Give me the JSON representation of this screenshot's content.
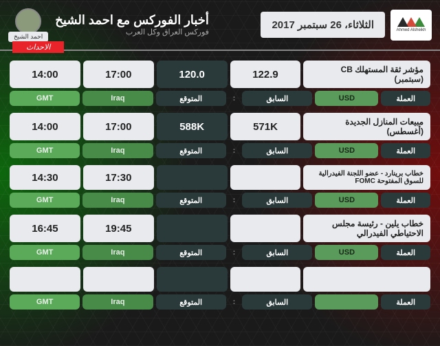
{
  "header": {
    "date": "الثلاثاء، 26 سبتمبر 2017",
    "title": "أخبار الفوركس مع احمد الشيخ",
    "subtitle": "فوركس العراق وكل العرب",
    "author": "احمد الشيخ",
    "logo_label": "Ahmed Alsheikh",
    "events_tag": "الاحداث"
  },
  "labels": {
    "currency": "العملة",
    "usd": "USD",
    "previous": "السابق",
    "expected": "المتوقع",
    "iraq": "Iraq",
    "gmt": "GMT"
  },
  "colors": {
    "tri1": "#3a8a3a",
    "tri2": "#d44a3a",
    "tri3": "#2a2a2a"
  },
  "events": [
    {
      "name": "مؤشر ثقة المستهلك CB (سبتمبر)",
      "previous": "122.9",
      "expected": "120.0",
      "time_iraq": "17:00",
      "time_gmt": "14:00",
      "has_usd": true
    },
    {
      "name": "مبيعات المنازل الجديدة (أغسطس)",
      "previous": "571K",
      "expected": "588K",
      "time_iraq": "17:00",
      "time_gmt": "14:00",
      "has_usd": true
    },
    {
      "name": "خطاب برينارد - عضو اللجنة الفيدرالية للسوق المفتوحة FOMC",
      "previous": "",
      "expected": "",
      "time_iraq": "17:30",
      "time_gmt": "14:30",
      "has_usd": true,
      "small": true
    },
    {
      "name": "خطاب يلين - رئيسة مجلس الاحتياطي الفيدرالي",
      "previous": "",
      "expected": "",
      "time_iraq": "19:45",
      "time_gmt": "16:45",
      "has_usd": true
    },
    {
      "name": "",
      "previous": "",
      "expected": "",
      "time_iraq": "",
      "time_gmt": "",
      "has_usd": false
    }
  ]
}
